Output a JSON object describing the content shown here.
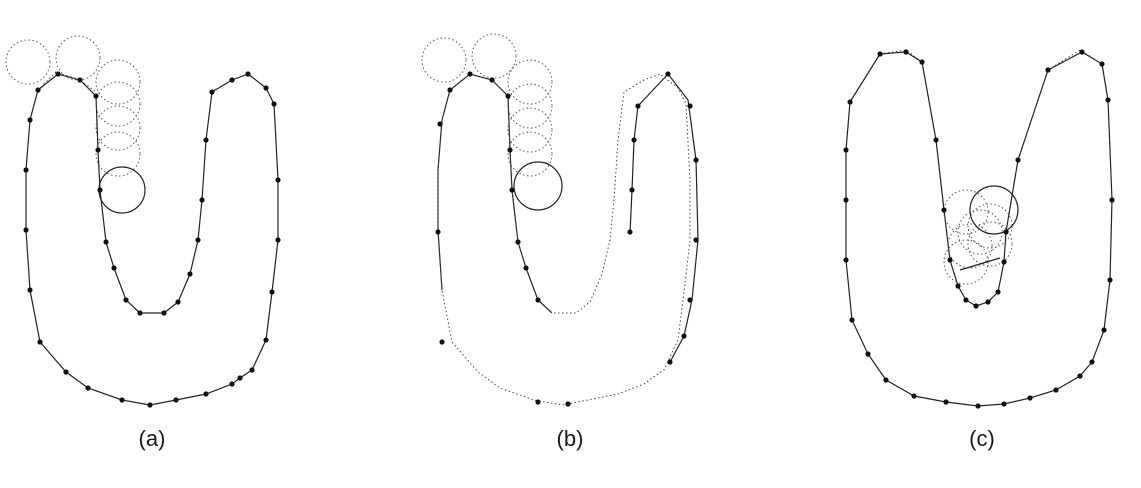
{
  "panels": [
    {
      "id": "a",
      "label": "(a)"
    },
    {
      "id": "b",
      "label": "(b)"
    },
    {
      "id": "c",
      "label": "(c)"
    }
  ]
}
